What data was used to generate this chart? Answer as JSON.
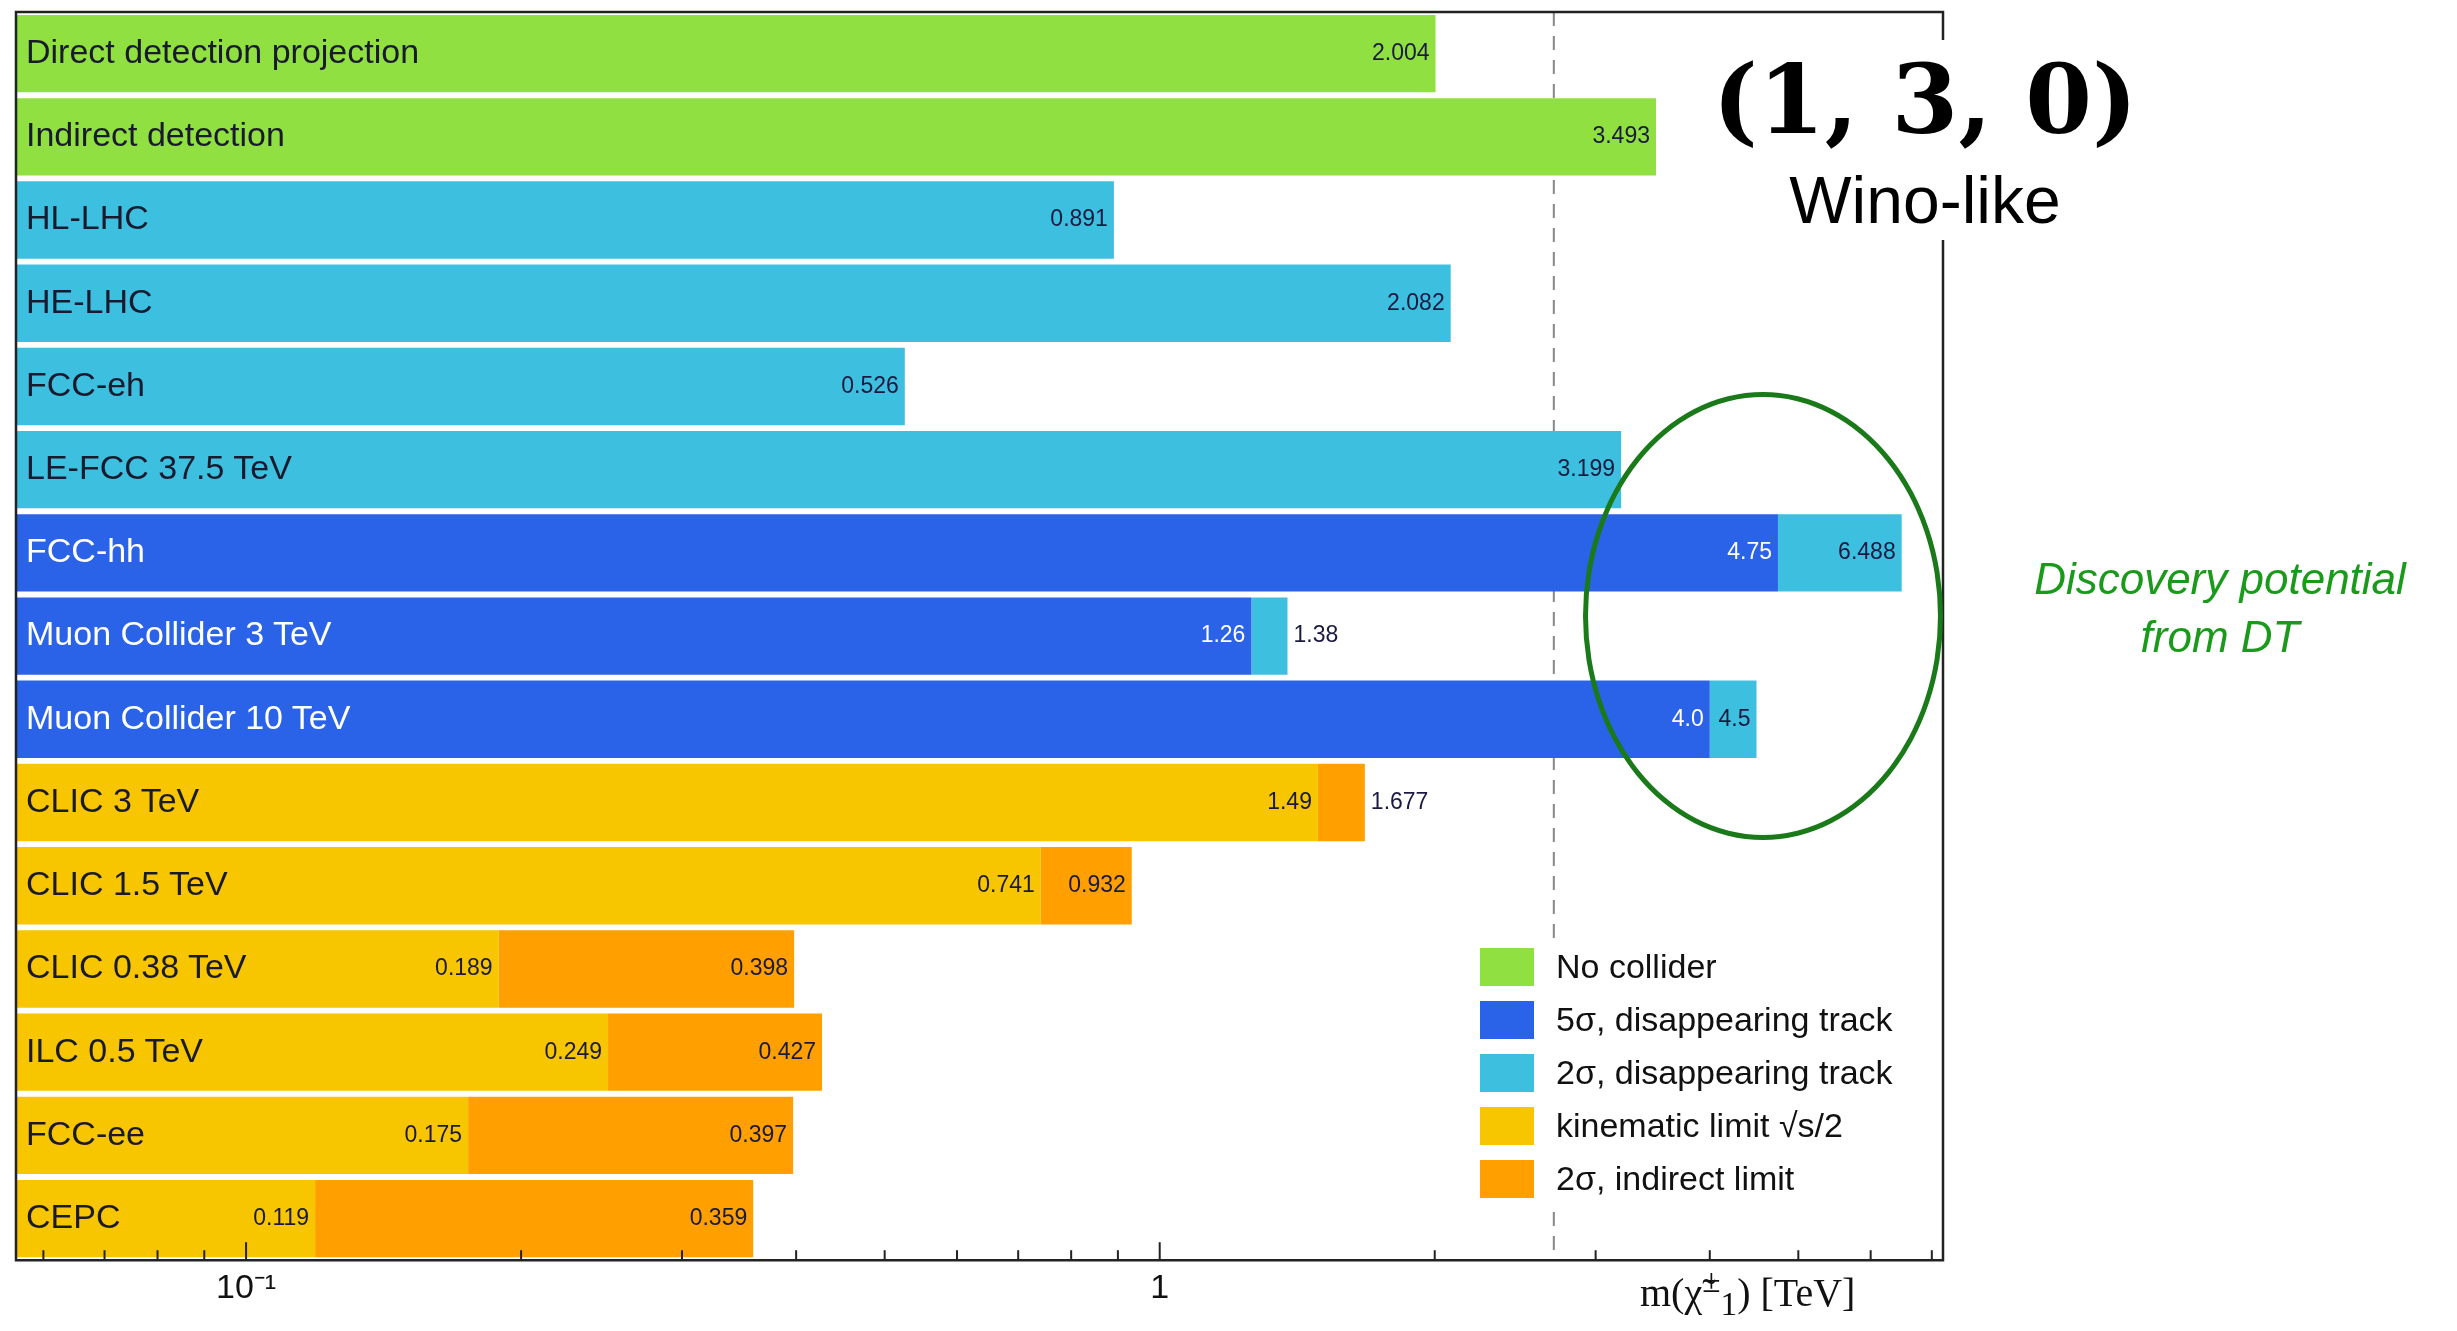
{
  "chart_data": {
    "type": "bar",
    "orientation": "horizontal",
    "stacked": true,
    "title": "(1, 3, 0)",
    "subtitle": "Wino-like",
    "xlabel": "m(χ̃$^{±}$$_{1}$) [TeV]",
    "categories": [
      "Direct detection projection",
      "Indirect detection",
      "HL-LHC",
      "HE-LHC",
      "FCC-eh",
      "LE-FCC 37.5 TeV",
      "FCC-hh",
      "Muon Collider 3 TeV",
      "Muon Collider 10 TeV",
      "CLIC 3 TeV",
      "CLIC 1.5 TeV",
      "CLIC 0.38 TeV",
      "ILC 0.5 TeV",
      "FCC-ee",
      "CEPC"
    ],
    "series": [
      {
        "name": "No collider",
        "color": "#8fe040",
        "values": [
          2.004,
          3.493,
          null,
          null,
          null,
          null,
          null,
          null,
          null,
          null,
          null,
          null,
          null,
          null,
          null
        ],
        "value_labels": [
          "2.004",
          "3.493",
          null,
          null,
          null,
          null,
          null,
          null,
          null,
          null,
          null,
          null,
          null,
          null,
          null
        ]
      },
      {
        "name": "5σ, disappearing track",
        "color": "#2a62e8",
        "values": [
          null,
          null,
          null,
          null,
          null,
          null,
          4.75,
          1.26,
          4.0,
          null,
          null,
          null,
          null,
          null,
          null
        ],
        "value_labels": [
          null,
          null,
          null,
          null,
          null,
          null,
          "4.75",
          "1.26",
          "4.0",
          null,
          null,
          null,
          null,
          null,
          null
        ]
      },
      {
        "name": "2σ, disappearing track",
        "color": "#3dbfe0",
        "values": [
          null,
          null,
          0.891,
          2.082,
          0.526,
          3.199,
          1.738,
          0.12,
          0.5,
          null,
          null,
          null,
          null,
          null,
          null
        ],
        "value_labels": [
          null,
          null,
          "0.891",
          "2.082",
          "0.526",
          "3.199",
          null,
          null,
          null,
          null,
          null,
          null,
          null,
          null,
          null
        ]
      },
      {
        "name": "kinematic limit √s/2",
        "color": "#f7c600",
        "values": [
          null,
          null,
          null,
          null,
          null,
          null,
          null,
          null,
          null,
          1.49,
          0.741,
          0.189,
          0.249,
          0.175,
          0.119
        ],
        "value_labels": [
          null,
          null,
          null,
          null,
          null,
          null,
          null,
          null,
          null,
          "1.49",
          "0.741",
          "0.189",
          "0.249",
          "0.175",
          "0.119"
        ]
      },
      {
        "name": "2σ, indirect limit",
        "color": "#ff9f00",
        "values": [
          null,
          null,
          null,
          null,
          null,
          null,
          null,
          null,
          null,
          0.187,
          0.191,
          0.209,
          0.178,
          0.222,
          0.24
        ]
      }
    ],
    "log": "x",
    "xlim": [
      0.056,
      7.2
    ],
    "xticks": [
      {
        "value": 0.06,
        "label": null
      },
      {
        "value": 0.07,
        "label": null
      },
      {
        "value": 0.08,
        "label": null
      },
      {
        "value": 0.09,
        "label": null
      },
      {
        "value": 0.1,
        "label": "10⁻¹"
      },
      {
        "value": 0.2,
        "label": null
      },
      {
        "value": 0.3,
        "label": null
      },
      {
        "value": 0.4,
        "label": null
      },
      {
        "value": 0.5,
        "label": null
      },
      {
        "value": 0.6,
        "label": null
      },
      {
        "value": 0.7,
        "label": null
      },
      {
        "value": 0.8,
        "label": null
      },
      {
        "value": 0.9,
        "label": null
      },
      1,
      {
        "value": 2,
        "label": null
      },
      {
        "value": 3,
        "label": null
      },
      {
        "value": 4,
        "label": null
      },
      {
        "value": 5,
        "label": null
      },
      {
        "value": 6,
        "label": null
      },
      {
        "value": 7,
        "label": null
      }
    ],
    "ref_lines": [
      {
        "axis": "x",
        "value": 2.7,
        "color": "#888888",
        "line_style": "dashed"
      }
    ],
    "legend": "bottom right",
    "annotations": [
      "Discovery potential from DT",
      {
        "text": "6.488",
        "x": 6.488,
        "y": "FCC-hh"
      },
      {
        "text": "1.38",
        "x": 1.38,
        "y": "Muon Collider 3 TeV"
      },
      {
        "text": "4.5",
        "x": 4.5,
        "y": "Muon Collider 10 TeV"
      },
      {
        "text": "1.677",
        "x": 1.677,
        "y": "CLIC 3 TeV"
      },
      {
        "text": "0.932",
        "x": 0.932,
        "y": "CLIC 1.5 TeV"
      },
      {
        "text": "0.398",
        "x": 0.398,
        "y": "CLIC 0.38 TeV"
      },
      {
        "text": "0.427",
        "x": 0.427,
        "y": "ILC 0.5 TeV"
      },
      {
        "text": "0.397",
        "x": 0.397,
        "y": "FCC-ee"
      },
      {
        "text": "0.359",
        "x": 0.359,
        "y": "CEPC"
      }
    ]
  }
}
